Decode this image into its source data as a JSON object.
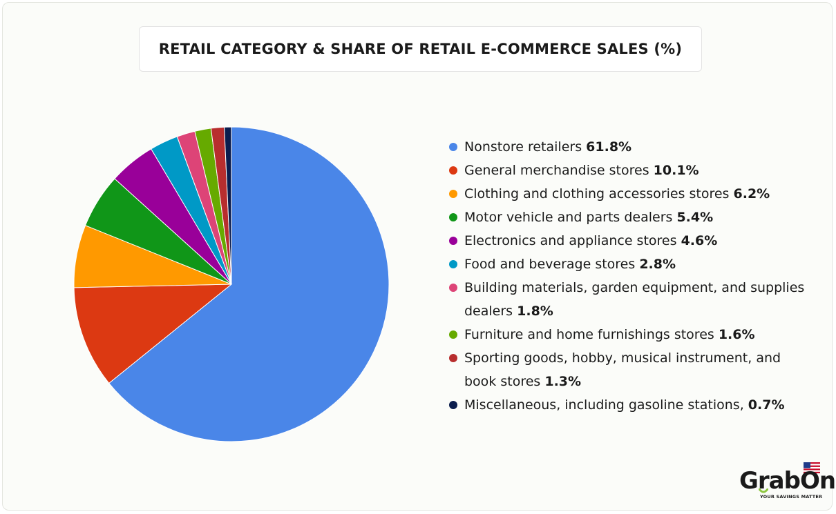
{
  "chart_data": {
    "type": "pie",
    "title": "RETAIL CATEGORY & SHARE OF RETAIL E-COMMERCE SALES (%)",
    "categories": [
      "Nonstore retailers",
      "General merchandise stores",
      "Clothing and clothing accessories stores",
      "Motor vehicle and parts dealers",
      "Electronics and appliance stores",
      "Food and beverage stores",
      "Building materials, garden equipment, and supplies dealers",
      "Furniture and home furnishings stores",
      "Sporting goods, hobby, musical instrument, and book stores",
      "Miscellaneous, including gasoline stations,"
    ],
    "values": [
      61.8,
      10.1,
      6.2,
      5.4,
      4.6,
      2.8,
      1.8,
      1.6,
      1.3,
      0.7
    ],
    "value_labels": [
      "61.8%",
      "10.1%",
      "6.2%",
      "5.4%",
      "4.6%",
      "2.8%",
      "1.8%",
      "1.6%",
      "1.3%",
      "0.7%"
    ],
    "colors": [
      "#4a86e8",
      "#dc3912",
      "#ff9900",
      "#109618",
      "#990099",
      "#0099c6",
      "#dd4477",
      "#66aa00",
      "#b82e2e",
      "#0b1d4d"
    ],
    "start_angle_deg": 0,
    "direction": "clockwise",
    "legend_position": "right"
  },
  "branding": {
    "logo_text": "GrabOn",
    "tagline": "YOUR SAVINGS MATTER",
    "flag_icon": "us-flag-icon"
  }
}
